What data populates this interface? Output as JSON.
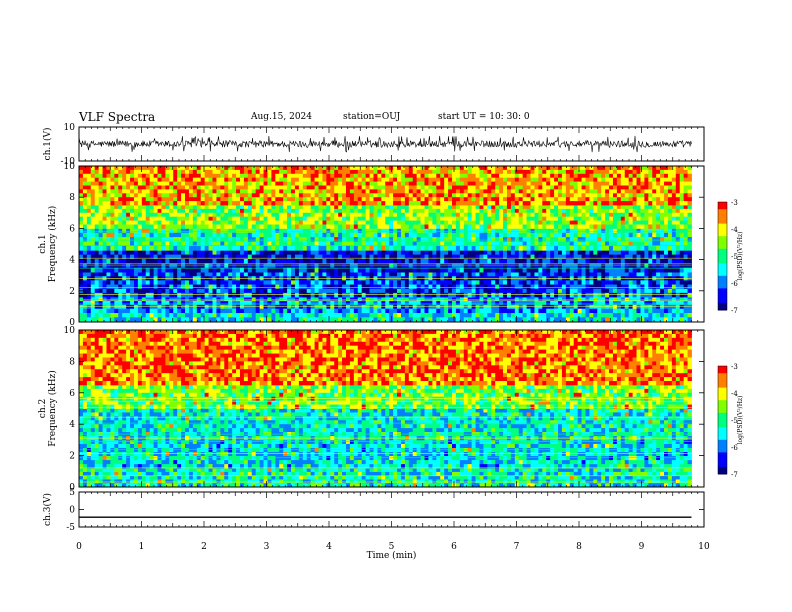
{
  "header": {
    "title": "VLF Spectra",
    "date": "Aug.15, 2024",
    "station": "station=OUJ",
    "start": "start  UT =   10: 30: 0"
  },
  "chart_data": [
    {
      "type": "line",
      "panel": "ch1-waveform",
      "ylabel": "ch.1(V)",
      "ylim": [
        -10,
        10
      ],
      "yticks": [
        "10",
        "-10"
      ],
      "xlim": [
        0,
        10
      ],
      "color": "#000000",
      "baseline": 0,
      "range_shown": [
        -4,
        4
      ]
    },
    {
      "type": "heatmap",
      "panel": "ch1-spectrogram",
      "ylabel": "ch.1\nFrequency (kHz)",
      "ylim": [
        0,
        10
      ],
      "yticks": [
        "0",
        "2",
        "4",
        "6",
        "8",
        "10"
      ],
      "xlim": [
        0,
        9.8
      ],
      "bands": [
        {
          "f0": 0,
          "f1": 0.6,
          "level": -5.4
        },
        {
          "f0": 0.6,
          "f1": 1.6,
          "level": -5.9
        },
        {
          "f0": 1.6,
          "f1": 3.2,
          "level": -6.3
        },
        {
          "f0": 3.2,
          "f1": 4.6,
          "level": -6.6
        },
        {
          "f0": 4.6,
          "f1": 6.0,
          "level": -5.2
        },
        {
          "f0": 6.0,
          "f1": 7.5,
          "level": -4.5
        },
        {
          "f0": 7.5,
          "f1": 10,
          "level": -3.7
        }
      ],
      "colorbar": {
        "min": -7,
        "max": -3,
        "ticks": [
          "-3",
          "-4",
          "-5",
          "-6",
          "-7"
        ],
        "label": "log(PSD)(V²/Hz)"
      }
    },
    {
      "type": "heatmap",
      "panel": "ch2-spectrogram",
      "ylabel": "ch.2\nFrequency (kHz)",
      "ylim": [
        0,
        10
      ],
      "yticks": [
        "0",
        "2",
        "4",
        "6",
        "8",
        "10"
      ],
      "xlim": [
        0,
        9.8
      ],
      "bands": [
        {
          "f0": 0,
          "f1": 1.2,
          "level": -5.3
        },
        {
          "f0": 1.2,
          "f1": 3.0,
          "level": -5.5
        },
        {
          "f0": 3.0,
          "f1": 5.0,
          "level": -5.4
        },
        {
          "f0": 5.0,
          "f1": 6.5,
          "level": -4.6
        },
        {
          "f0": 6.5,
          "f1": 10,
          "level": -3.5
        }
      ],
      "colorbar": {
        "min": -7,
        "max": -3,
        "ticks": [
          "-3",
          "-4",
          "-5",
          "-6",
          "-7"
        ],
        "label": "log(PSD)(V²/Hz)"
      }
    },
    {
      "type": "line",
      "panel": "ch3-waveform",
      "ylabel": "ch.3(V)",
      "ylim": [
        -5,
        5
      ],
      "yticks": [
        "5",
        "0",
        "-5"
      ],
      "xlim": [
        0,
        10
      ],
      "x": [
        0,
        9.8
      ],
      "y": [
        -2.2,
        -2.2
      ],
      "color": "#000000"
    }
  ],
  "xaxis": {
    "label": "Time (min)",
    "ticks": [
      "0",
      "1",
      "2",
      "3",
      "4",
      "5",
      "6",
      "7",
      "8",
      "9",
      "10"
    ]
  },
  "colormap": [
    "#000080",
    "#0000ff",
    "#0080ff",
    "#00ffff",
    "#00ff80",
    "#80ff00",
    "#ffff00",
    "#ff8000",
    "#ff0000"
  ]
}
